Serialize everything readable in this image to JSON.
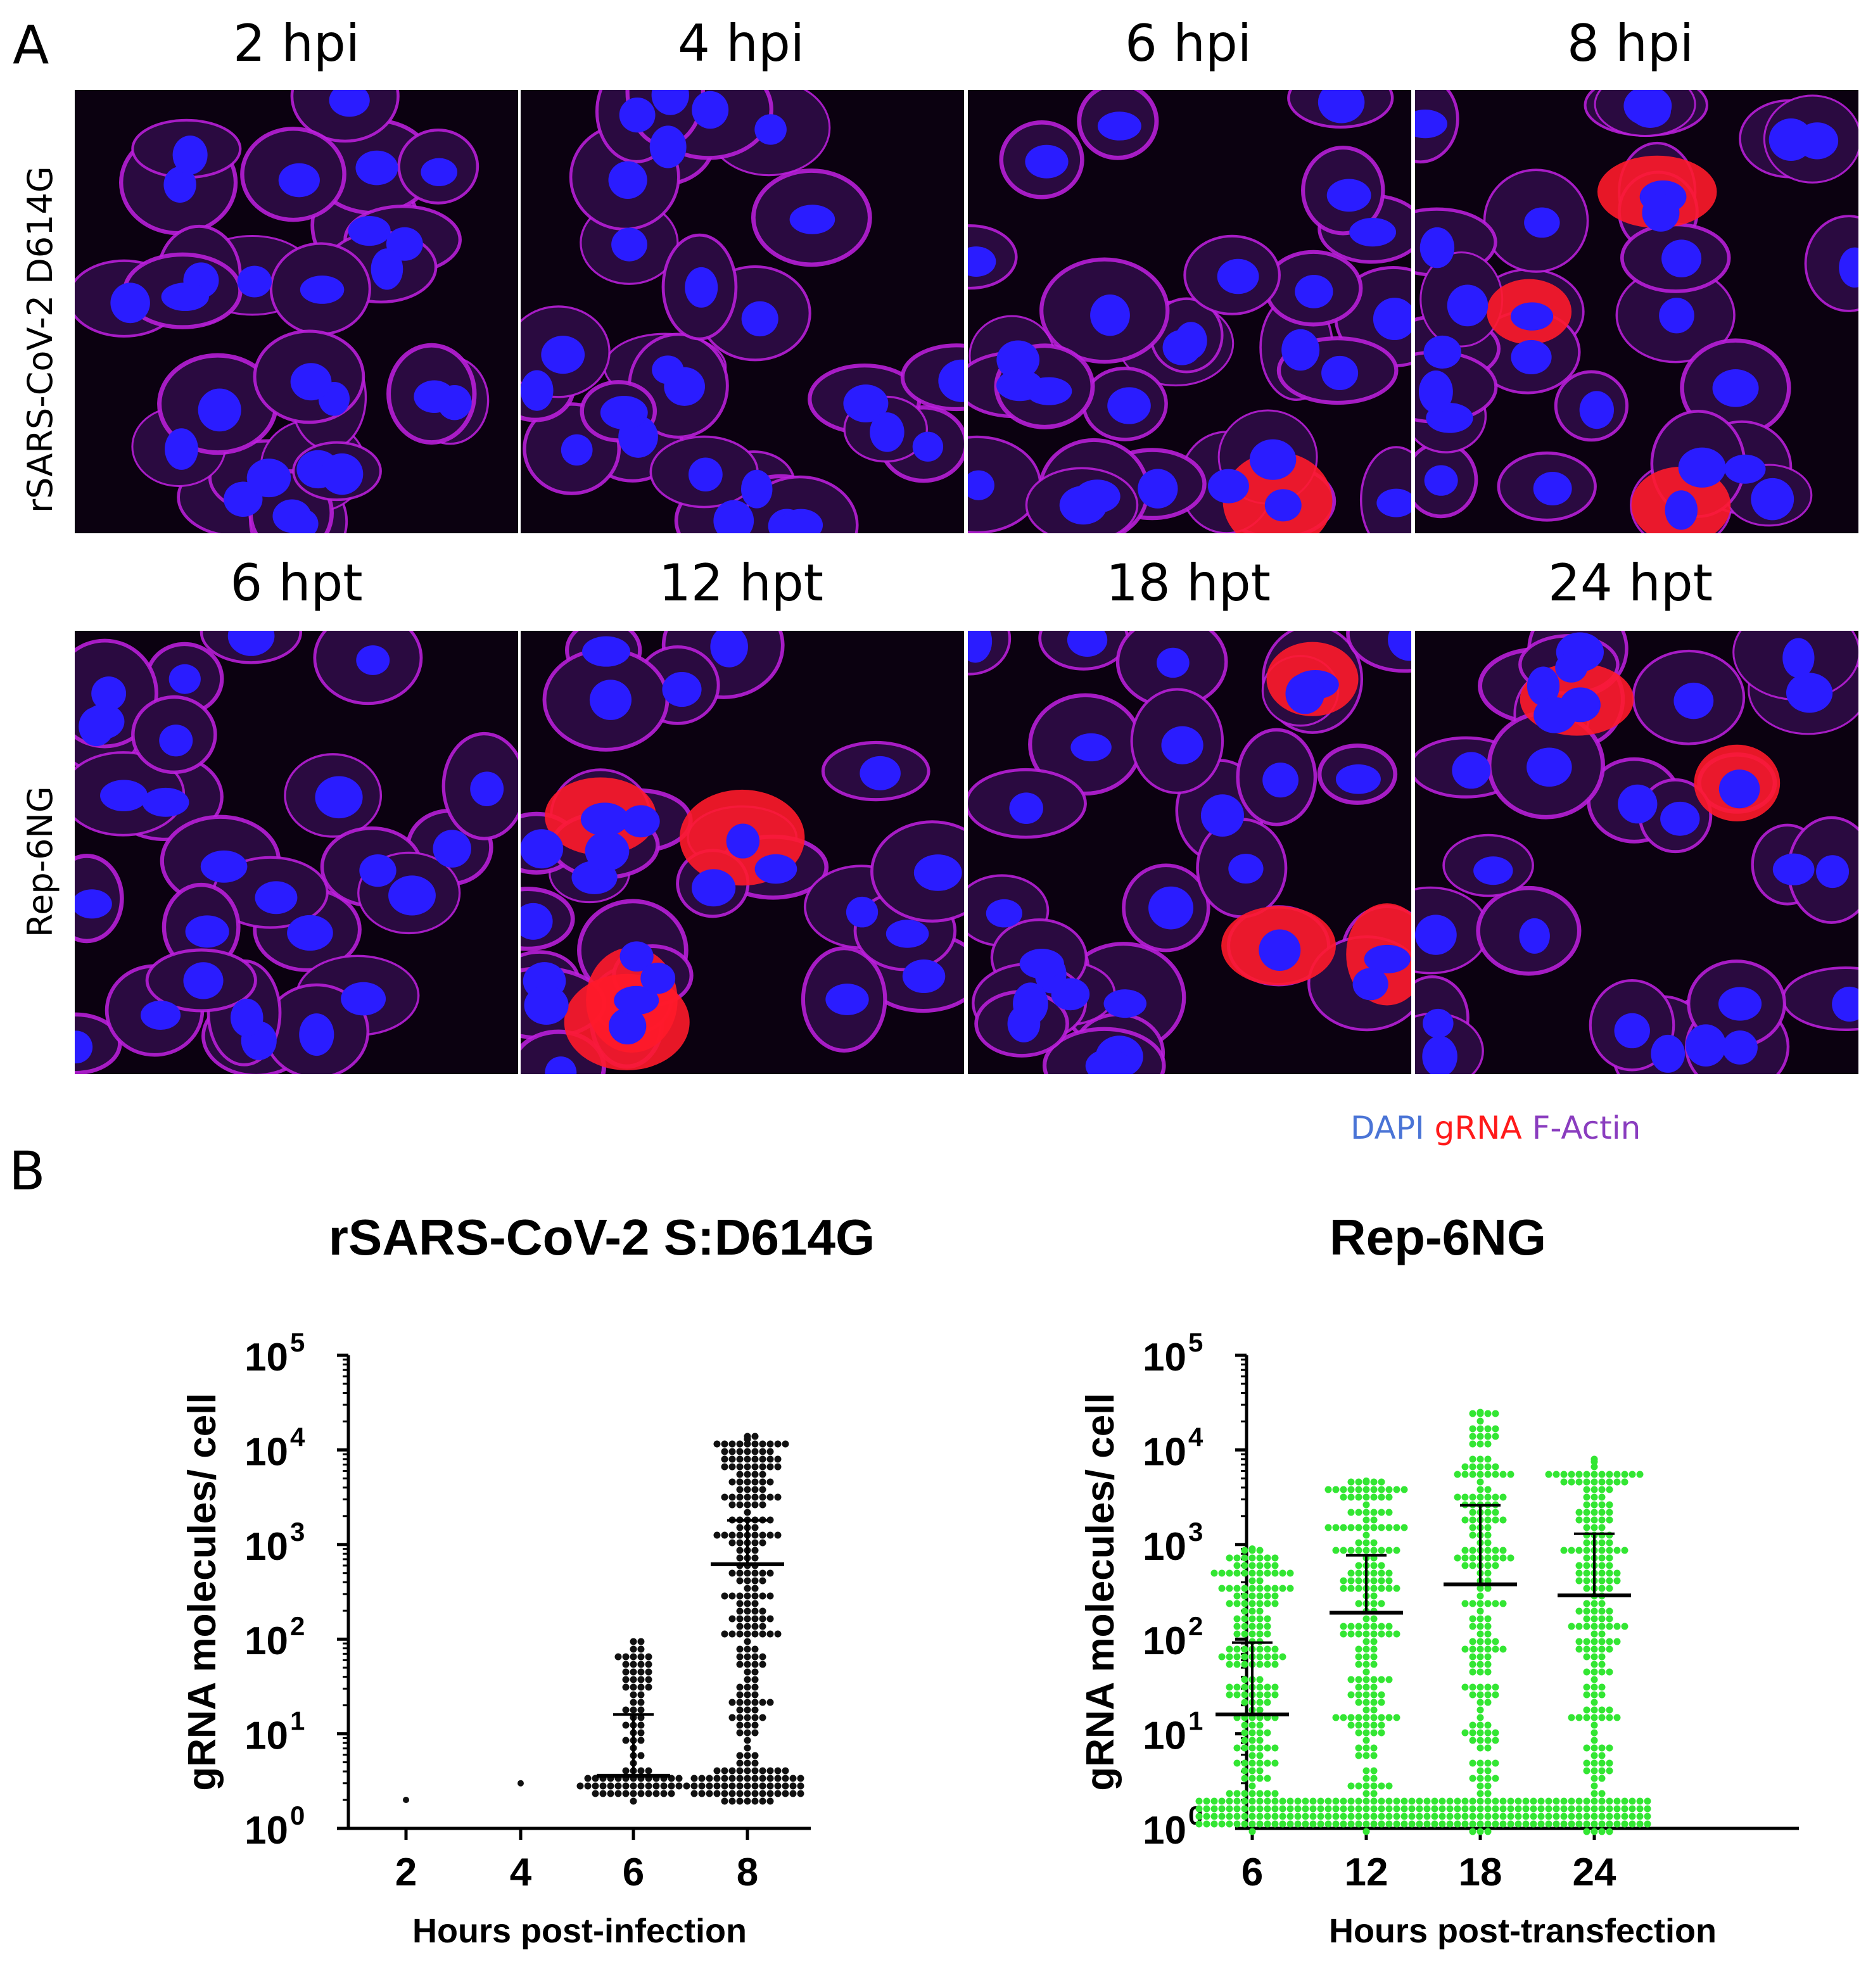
{
  "panels": {
    "a_label": "A",
    "b_label": "B"
  },
  "microscopy": {
    "rows": [
      {
        "label": "rSARS-CoV-2 D614G",
        "columns": [
          "2 hpi",
          "4 hpi",
          "6 hpi",
          "8 hpi"
        ]
      },
      {
        "label": "Rep-6NG",
        "columns": [
          "6 hpt",
          "12 hpt",
          "18 hpt",
          "24 hpt"
        ]
      }
    ],
    "legend": {
      "dapi": "DAPI",
      "grna": "gRNA",
      "factin": "F-Actin"
    },
    "colors": {
      "nucleus": "#2a1cff",
      "actin": "#c020e0",
      "grna": "#ff1a2a",
      "background": "#0b0110"
    }
  },
  "chart_data": [
    {
      "type": "scatter",
      "title": "rSARS-CoV-2 S:D614G",
      "xlabel": "Hours post-infection",
      "ylabel": "gRNA molecules/ cell",
      "y_scale": "log",
      "ylim": [
        1,
        100000
      ],
      "categories": [
        "2",
        "4",
        "6",
        "8"
      ],
      "y_tick_labels": [
        "10",
        "10",
        "10",
        "10",
        "10",
        "10"
      ],
      "y_tick_exponents": [
        "0",
        "1",
        "2",
        "3",
        "4",
        "5"
      ],
      "point_color": "#111111",
      "groups": [
        {
          "category": "2",
          "points": [
            2
          ]
        },
        {
          "category": "4",
          "points": [
            3
          ]
        },
        {
          "category": "6",
          "median": 3.6,
          "upper": 16,
          "lower": 2
        },
        {
          "category": "8",
          "median": 620,
          "upper": 1800,
          "lower": 2,
          "max": 13000
        }
      ]
    },
    {
      "type": "scatter",
      "title": "Rep-6NG",
      "xlabel": "Hours post-transfection",
      "ylabel": "gRNA molecules/ cell",
      "y_scale": "log",
      "ylim": [
        1,
        100000
      ],
      "categories": [
        "6",
        "12",
        "18",
        "24"
      ],
      "y_tick_labels": [
        "10",
        "10",
        "10",
        "10",
        "10",
        "10"
      ],
      "y_tick_exponents": [
        "0",
        "1",
        "2",
        "3",
        "4",
        "5"
      ],
      "point_color": "#33e633",
      "groups": [
        {
          "category": "6",
          "median": 16,
          "upper": 92,
          "lower": 1,
          "max": 900
        },
        {
          "category": "12",
          "median": 190,
          "upper": 770,
          "lower": 1,
          "max": 4700
        },
        {
          "category": "18",
          "median": 380,
          "upper": 2600,
          "lower": 1,
          "max": 25000
        },
        {
          "category": "24",
          "median": 290,
          "upper": 1300,
          "lower": 1,
          "max": 7500
        }
      ]
    }
  ]
}
